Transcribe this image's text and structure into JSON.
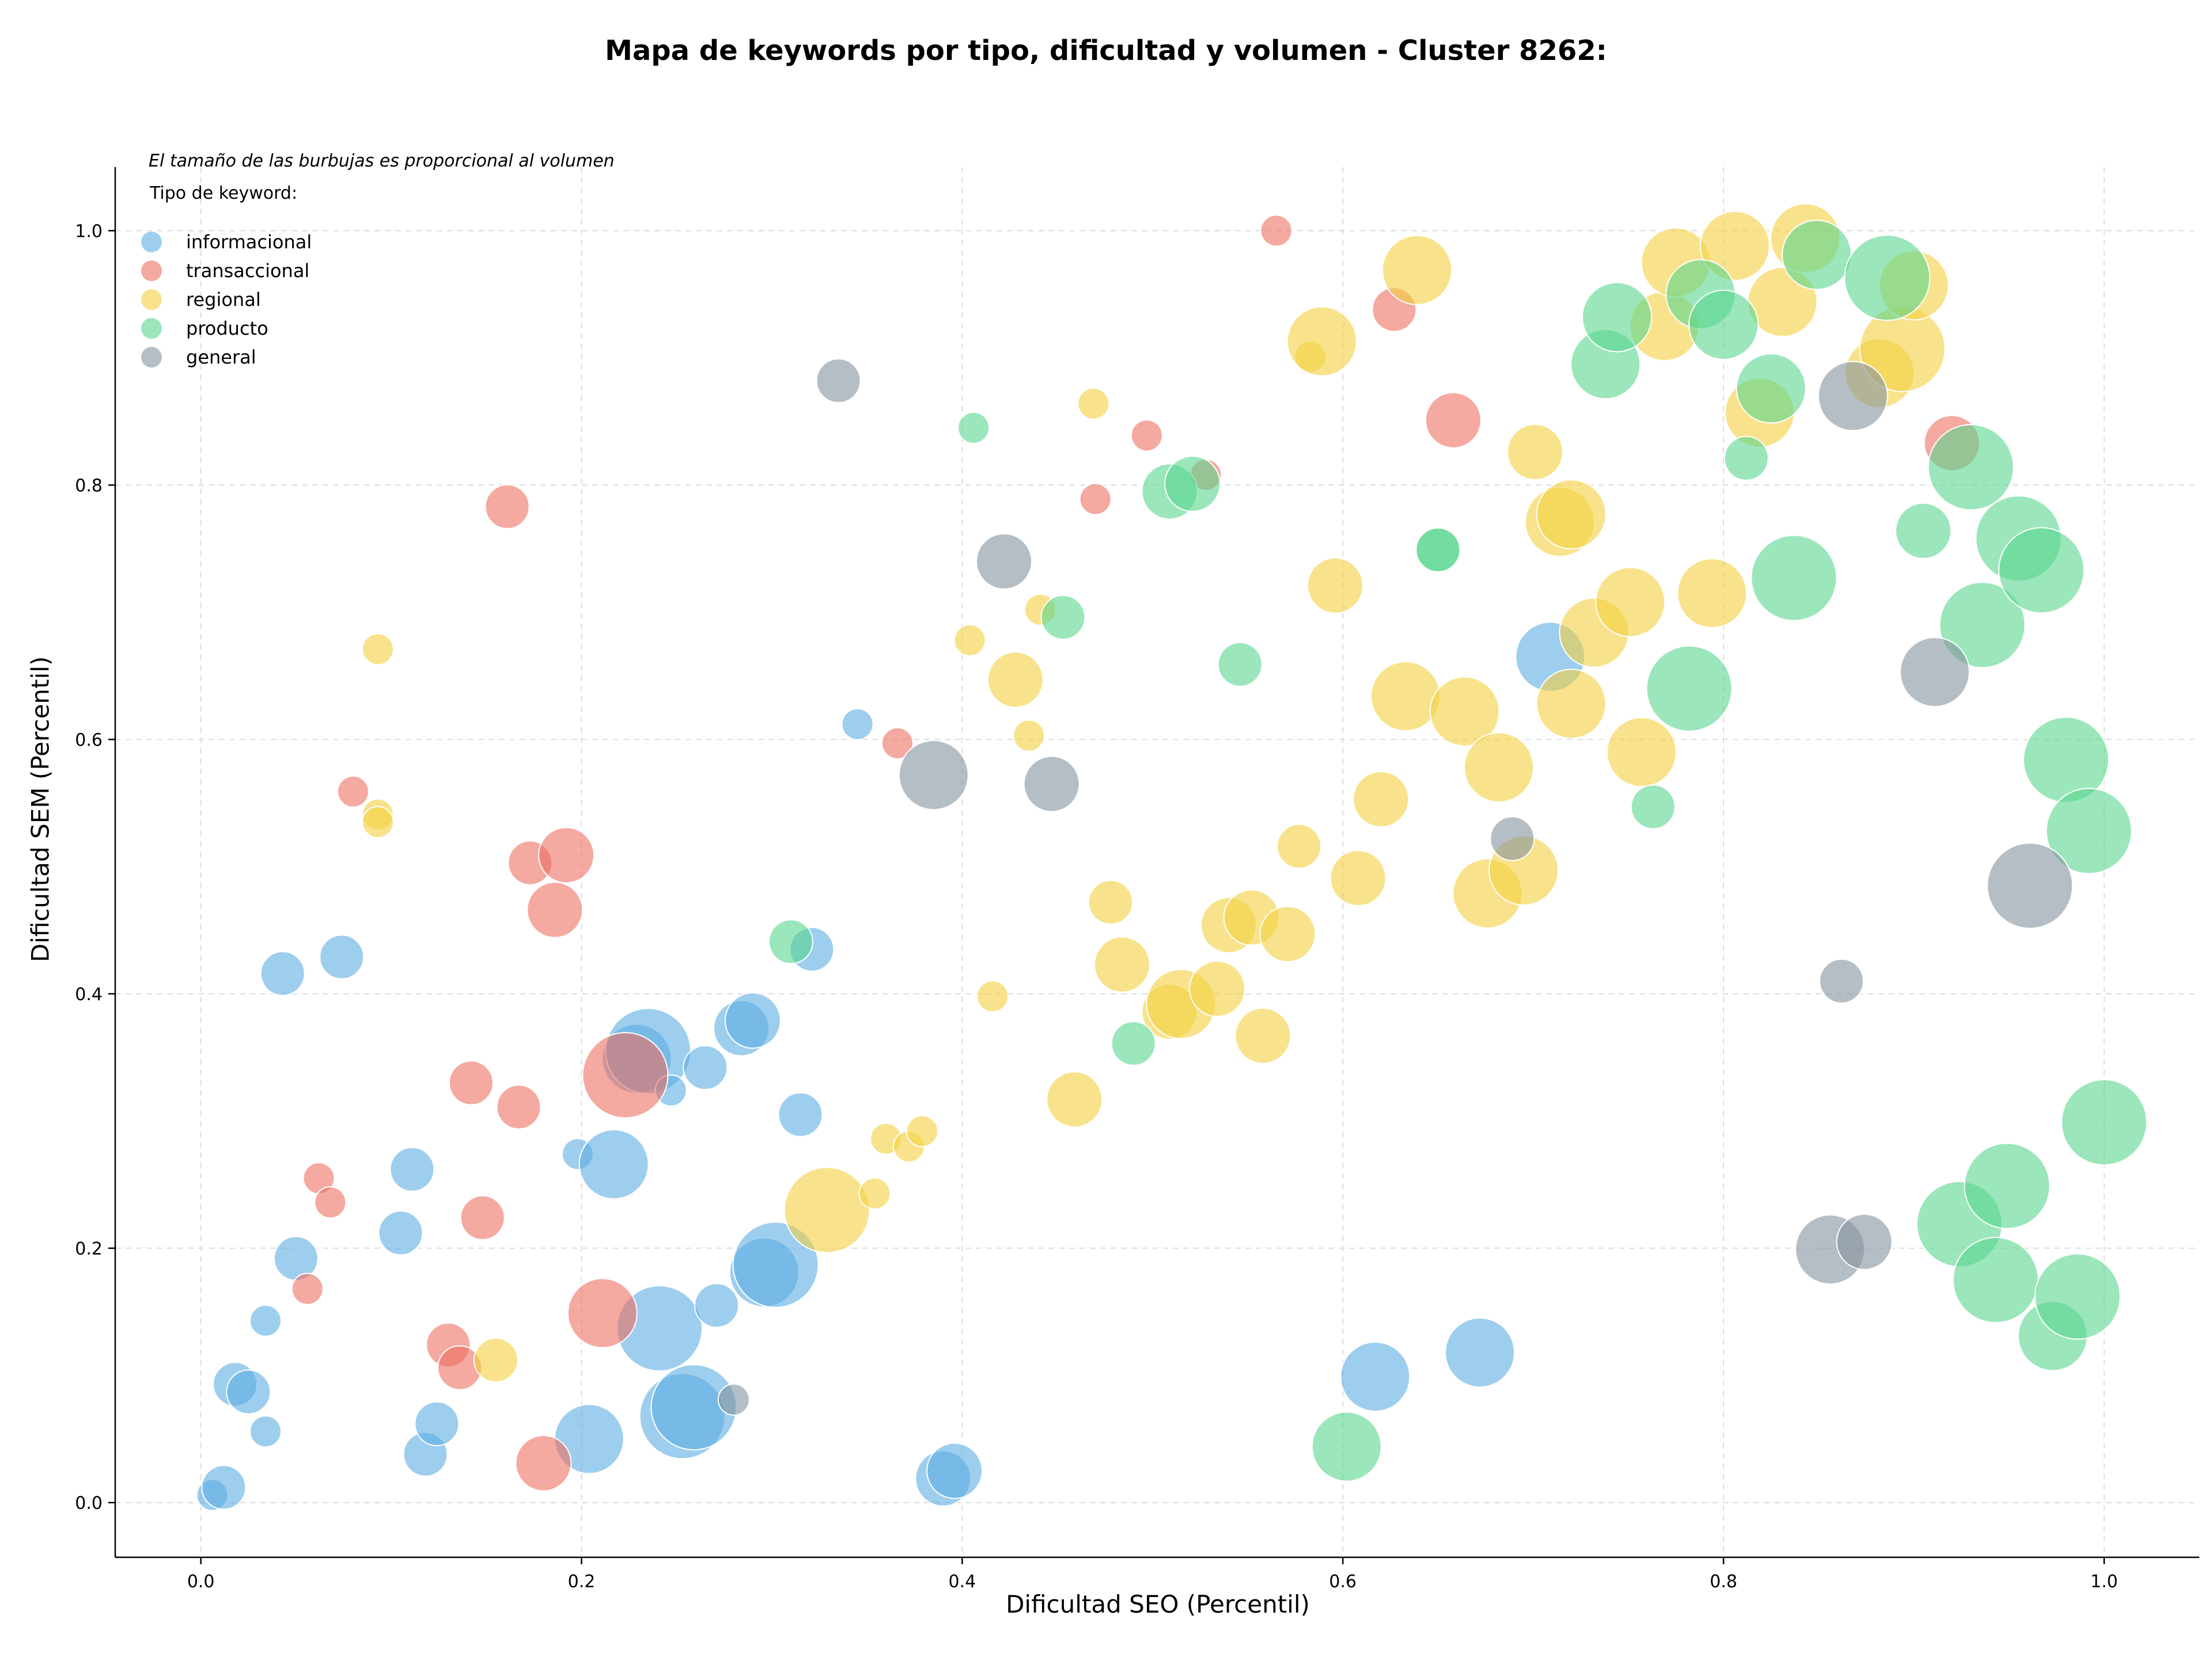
{
  "chart_data": {
    "type": "scatter",
    "title": "Mapa de keywords por tipo, dificultad y volumen - Cluster 8262:",
    "xlabel": "Dificultad SEO (Percentil)",
    "ylabel": "Dificultad SEM (Percentil)",
    "xlim": [
      -0.045,
      1.05
    ],
    "ylim": [
      -0.043,
      1.05
    ],
    "xticks": [
      "0.0",
      "0.2",
      "0.4",
      "0.6",
      "0.8",
      "1.0"
    ],
    "yticks": [
      "0.0",
      "0.2",
      "0.4",
      "0.6",
      "0.8",
      "1.0"
    ],
    "grid": true,
    "note": "El tamaño de las burbujas es proporcional al volumen",
    "legend_title": "Tipo de keyword:",
    "legend_position": "top-left",
    "series": [
      {
        "name": "informacional",
        "color": "#5DADE2",
        "points": [
          [
            0.006,
            0.006,
            1
          ],
          [
            0.012,
            0.012,
            2
          ],
          [
            0.018,
            0.093,
            2
          ],
          [
            0.025,
            0.087,
            2
          ],
          [
            0.034,
            0.056,
            1
          ],
          [
            0.034,
            0.143,
            1
          ],
          [
            0.043,
            0.416,
            2
          ],
          [
            0.05,
            0.192,
            2
          ],
          [
            0.074,
            0.429,
            2
          ],
          [
            0.105,
            0.212,
            2
          ],
          [
            0.111,
            0.262,
            2
          ],
          [
            0.118,
            0.038,
            2
          ],
          [
            0.124,
            0.062,
            2
          ],
          [
            0.198,
            0.274,
            1
          ],
          [
            0.204,
            0.05,
            4
          ],
          [
            0.217,
            0.266,
            4
          ],
          [
            0.229,
            0.349,
            4
          ],
          [
            0.235,
            0.355,
            5
          ],
          [
            0.241,
            0.137,
            5
          ],
          [
            0.247,
            0.324,
            1
          ],
          [
            0.253,
            0.068,
            5
          ],
          [
            0.259,
            0.075,
            5
          ],
          [
            0.265,
            0.342,
            2
          ],
          [
            0.271,
            0.155,
            2
          ],
          [
            0.284,
            0.373,
            3
          ],
          [
            0.29,
            0.379,
            3
          ],
          [
            0.296,
            0.181,
            4
          ],
          [
            0.302,
            0.187,
            5
          ],
          [
            0.315,
            0.305,
            2
          ],
          [
            0.321,
            0.435,
            2
          ],
          [
            0.345,
            0.612,
            1
          ],
          [
            0.39,
            0.019,
            3
          ],
          [
            0.396,
            0.025,
            3
          ],
          [
            0.617,
            0.099,
            4
          ],
          [
            0.672,
            0.118,
            4
          ],
          [
            0.709,
            0.665,
            4
          ]
        ]
      },
      {
        "name": "transaccional",
        "color": "#EC7063",
        "points": [
          [
            0.056,
            0.168,
            1
          ],
          [
            0.062,
            0.255,
            1
          ],
          [
            0.068,
            0.236,
            1
          ],
          [
            0.08,
            0.559,
            1
          ],
          [
            0.13,
            0.124,
            2
          ],
          [
            0.136,
            0.106,
            2
          ],
          [
            0.142,
            0.33,
            2
          ],
          [
            0.148,
            0.224,
            2
          ],
          [
            0.161,
            0.783,
            2
          ],
          [
            0.167,
            0.311,
            2
          ],
          [
            0.173,
            0.503,
            2
          ],
          [
            0.18,
            0.031,
            3
          ],
          [
            0.186,
            0.466,
            3
          ],
          [
            0.192,
            0.509,
            3
          ],
          [
            0.211,
            0.149,
            4
          ],
          [
            0.223,
            0.336,
            5
          ],
          [
            0.366,
            0.597,
            1
          ],
          [
            0.47,
            0.789,
            1
          ],
          [
            0.497,
            0.839,
            1
          ],
          [
            0.528,
            0.808,
            1
          ],
          [
            0.565,
            1.0,
            1
          ],
          [
            0.627,
            0.938,
            2
          ],
          [
            0.658,
            0.851,
            3
          ],
          [
            0.92,
            0.833,
            3
          ]
        ]
      },
      {
        "name": "regional",
        "color": "#F4D03F",
        "points": [
          [
            0.093,
            0.671,
            1
          ],
          [
            0.093,
            0.541,
            1
          ],
          [
            0.093,
            0.535,
            1
          ],
          [
            0.155,
            0.112,
            2
          ],
          [
            0.329,
            0.23,
            5
          ],
          [
            0.354,
            0.243,
            1
          ],
          [
            0.36,
            0.286,
            1
          ],
          [
            0.372,
            0.28,
            1
          ],
          [
            0.379,
            0.292,
            1
          ],
          [
            0.404,
            0.678,
            1
          ],
          [
            0.416,
            0.398,
            1
          ],
          [
            0.428,
            0.647,
            3
          ],
          [
            0.435,
            0.603,
            1
          ],
          [
            0.441,
            0.702,
            1
          ],
          [
            0.459,
            0.317,
            3
          ],
          [
            0.469,
            0.864,
            1
          ],
          [
            0.478,
            0.472,
            2
          ],
          [
            0.484,
            0.423,
            3
          ],
          [
            0.509,
            0.386,
            3
          ],
          [
            0.515,
            0.392,
            4
          ],
          [
            0.534,
            0.404,
            3
          ],
          [
            0.54,
            0.454,
            3
          ],
          [
            0.552,
            0.46,
            3
          ],
          [
            0.558,
            0.367,
            3
          ],
          [
            0.571,
            0.447,
            3
          ],
          [
            0.577,
            0.516,
            2
          ],
          [
            0.583,
            0.901,
            1
          ],
          [
            0.589,
            0.913,
            4
          ],
          [
            0.596,
            0.721,
            3
          ],
          [
            0.608,
            0.491,
            3
          ],
          [
            0.62,
            0.553,
            3
          ],
          [
            0.633,
            0.634,
            4
          ],
          [
            0.639,
            0.969,
            4
          ],
          [
            0.664,
            0.622,
            4
          ],
          [
            0.676,
            0.479,
            4
          ],
          [
            0.682,
            0.578,
            4
          ],
          [
            0.695,
            0.497,
            4
          ],
          [
            0.701,
            0.826,
            3
          ],
          [
            0.714,
            0.771,
            4
          ],
          [
            0.72,
            0.777,
            4
          ],
          [
            0.72,
            0.628,
            4
          ],
          [
            0.732,
            0.684,
            4
          ],
          [
            0.751,
            0.708,
            4
          ],
          [
            0.757,
            0.59,
            4
          ],
          [
            0.769,
            0.925,
            4
          ],
          [
            0.775,
            0.975,
            4
          ],
          [
            0.794,
            0.715,
            4
          ],
          [
            0.806,
            0.988,
            4
          ],
          [
            0.819,
            0.857,
            4
          ],
          [
            0.831,
            0.944,
            4
          ],
          [
            0.843,
            0.994,
            4
          ],
          [
            0.882,
            0.888,
            4
          ],
          [
            0.894,
            0.907,
            5
          ],
          [
            0.9,
            0.957,
            4
          ]
        ]
      },
      {
        "name": "producto",
        "color": "#58D68D",
        "points": [
          [
            0.31,
            0.441,
            2
          ],
          [
            0.406,
            0.845,
            1
          ],
          [
            0.453,
            0.696,
            2
          ],
          [
            0.49,
            0.361,
            2
          ],
          [
            0.509,
            0.795,
            3
          ],
          [
            0.521,
            0.801,
            3
          ],
          [
            0.546,
            0.659,
            2
          ],
          [
            0.602,
            0.044,
            4
          ],
          [
            0.65,
            0.749,
            2
          ],
          [
            0.65,
            0.749,
            2
          ],
          [
            0.738,
            0.895,
            4
          ],
          [
            0.744,
            0.932,
            4
          ],
          [
            0.763,
            0.547,
            2
          ],
          [
            0.782,
            0.64,
            5
          ],
          [
            0.788,
            0.95,
            4
          ],
          [
            0.8,
            0.926,
            4
          ],
          [
            0.812,
            0.821,
            2
          ],
          [
            0.825,
            0.876,
            4
          ],
          [
            0.837,
            0.727,
            5
          ],
          [
            0.849,
            0.981,
            4
          ],
          [
            0.886,
            0.963,
            5
          ],
          [
            0.905,
            0.764,
            3
          ],
          [
            0.924,
            0.219,
            5
          ],
          [
            0.93,
            0.814,
            5
          ],
          [
            0.936,
            0.69,
            5
          ],
          [
            0.943,
            0.175,
            5
          ],
          [
            0.949,
            0.249,
            5
          ],
          [
            0.955,
            0.758,
            5
          ],
          [
            0.967,
            0.733,
            5
          ],
          [
            0.973,
            0.131,
            4
          ],
          [
            0.98,
            0.584,
            5
          ],
          [
            0.986,
            0.162,
            5
          ],
          [
            0.992,
            0.528,
            5
          ],
          [
            1.0,
            0.299,
            5
          ]
        ]
      },
      {
        "name": "general",
        "color": "#85929E",
        "points": [
          [
            0.28,
            0.081,
            1
          ],
          [
            0.335,
            0.882,
            2
          ],
          [
            0.385,
            0.572,
            4
          ],
          [
            0.422,
            0.74,
            3
          ],
          [
            0.447,
            0.565,
            3
          ],
          [
            0.689,
            0.522,
            2
          ],
          [
            0.856,
            0.199,
            4
          ],
          [
            0.862,
            0.41,
            2
          ],
          [
            0.868,
            0.87,
            4
          ],
          [
            0.874,
            0.205,
            3
          ],
          [
            0.911,
            0.653,
            4
          ],
          [
            0.961,
            0.485,
            5
          ]
        ]
      }
    ]
  }
}
